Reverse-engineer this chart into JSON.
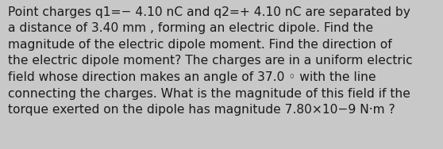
{
  "text": "Point charges q1=− 4.10 nC and q2=+ 4.10 nC are separated by\na distance of 3.40 mm , forming an electric dipole. Find the\nmagnitude of the electric dipole moment. Find the direction of\nthe electric dipole moment? The charges are in a uniform electric\nfield whose direction makes an angle of 37.0 ◦ with the line\nconnecting the charges. What is the magnitude of this field if the\ntorque exerted on the dipole has magnitude 7.80×10−9 N·m ?",
  "background_color": "#c8c8c8",
  "text_color": "#1a1a1a",
  "font_size": 11.2,
  "fig_width": 5.58,
  "fig_height": 1.88,
  "dpi": 100
}
